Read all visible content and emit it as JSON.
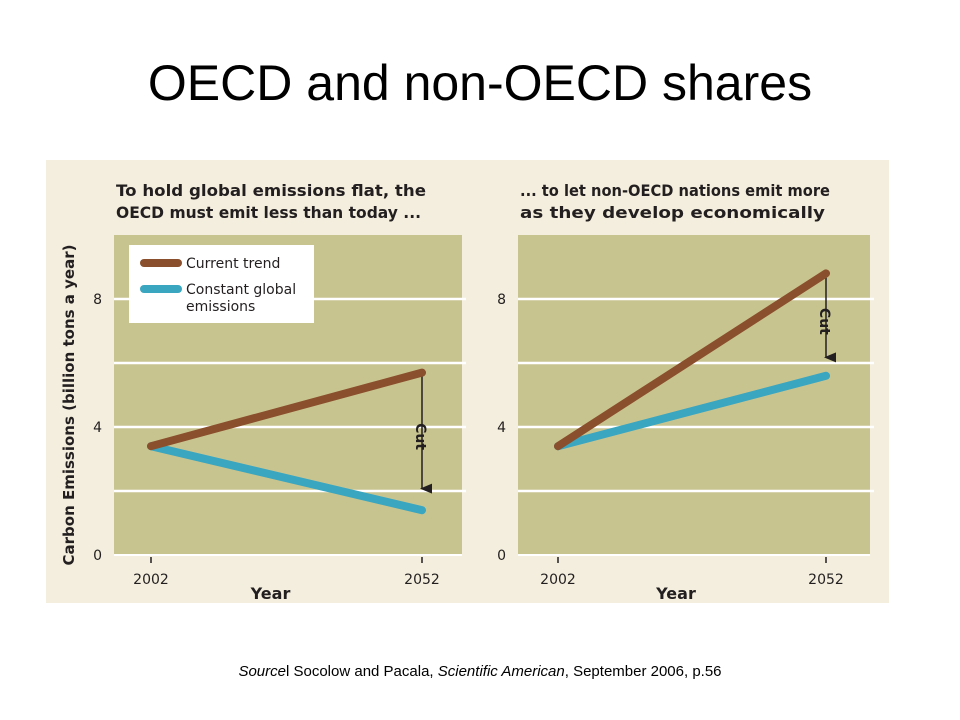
{
  "slide": {
    "title": "OECD and non-OECD shares",
    "source": {
      "source_label": "Source",
      "authors": "l Socolow and Pacala, ",
      "journal": "Scientific American",
      "rest": ", September 2006, p.56"
    }
  },
  "colors": {
    "plot_bg": "#c8c490",
    "figure_bg": "#f3eedd",
    "current_trend": "#8a4f2c",
    "constant_global": "#3aa6c0",
    "gridline": "#ffffff",
    "text": "#231f20"
  },
  "chart_data": [
    {
      "type": "line",
      "title": "To hold global emissions flat, the OECD must emit less than today ...",
      "title_lines": [
        "To hold global emissions flat, the",
        "OECD must emit less than today ..."
      ],
      "ylabel": "Carbon Emissions (billion tons a year)",
      "xlabel": "Year",
      "x_ticks": [
        "2002",
        "2052"
      ],
      "y_ticks": [
        "0",
        "4",
        "8"
      ],
      "ylim": [
        0,
        10
      ],
      "gridlines": [
        2,
        4,
        6,
        8
      ],
      "legend": {
        "position": "top-left",
        "entries": [
          "Current trend",
          "Constant global emissions"
        ],
        "entry_lines": [
          [
            "Current trend"
          ],
          [
            "Constant global",
            "emissions"
          ]
        ]
      },
      "series": [
        {
          "name": "Current trend",
          "x": [
            2002,
            2052
          ],
          "y": [
            3.4,
            5.7
          ]
        },
        {
          "name": "Constant global emissions",
          "x": [
            2002,
            2052
          ],
          "y": [
            3.4,
            1.4
          ]
        }
      ],
      "annotation": {
        "text": "Cut",
        "x": 2052,
        "from": 5.7,
        "to": 1.7
      }
    },
    {
      "type": "line",
      "title": "... to let non-OECD nations emit more as they develop economically",
      "title_lines": [
        "... to let non-OECD nations emit more",
        "as they develop economically"
      ],
      "ylabel": "",
      "xlabel": "Year",
      "x_ticks": [
        "2002",
        "2052"
      ],
      "y_ticks": [
        "0",
        "4",
        "8"
      ],
      "ylim": [
        0,
        10
      ],
      "gridlines": [
        2,
        4,
        6,
        8
      ],
      "series": [
        {
          "name": "Current trend",
          "x": [
            2002,
            2052
          ],
          "y": [
            3.4,
            8.8
          ]
        },
        {
          "name": "Constant global emissions",
          "x": [
            2002,
            2052
          ],
          "y": [
            3.4,
            5.6
          ]
        }
      ],
      "annotation": {
        "text": "Cut",
        "x": 2052,
        "from": 8.8,
        "to": 5.8
      }
    }
  ]
}
